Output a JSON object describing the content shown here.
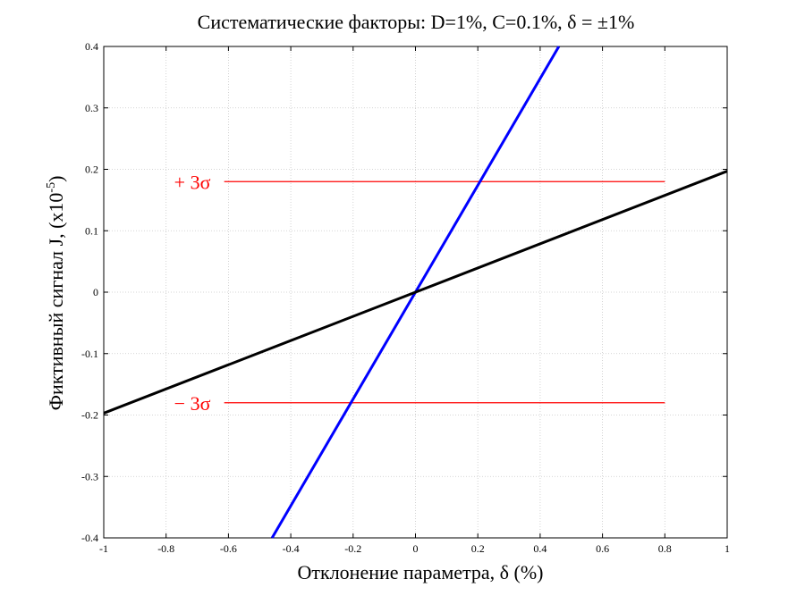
{
  "chart_data": {
    "type": "line",
    "title": "Систематические факторы:    D=1%, C=0.1%, δ = ±1%",
    "xlabel": "Отклонение параметра,  δ (%)",
    "ylabel": "Фиктивный сигнал J, (x10",
    "ylabel_exp": "-5",
    "ylabel_close": ")",
    "xlim": [
      -1,
      1
    ],
    "ylim": [
      -0.4,
      0.4
    ],
    "x_ticks": [
      -1,
      -0.8,
      -0.6,
      -0.4,
      -0.2,
      0,
      0.2,
      0.4,
      0.6,
      0.8,
      1
    ],
    "x_tick_labels": [
      "-1",
      "-0.8",
      "-0.6",
      "-0.4",
      "-0.2",
      "0",
      "0.2",
      "0.4",
      "0.6",
      "0.8",
      "1"
    ],
    "y_ticks": [
      -0.4,
      -0.3,
      -0.2,
      -0.1,
      0,
      0.1,
      0.2,
      0.3,
      0.4
    ],
    "y_tick_labels": [
      "-0.4",
      "-0.3",
      "-0.2",
      "-0.1",
      "0",
      "0.1",
      "0.2",
      "0.3",
      "0.4"
    ],
    "grid": true,
    "series": [
      {
        "color": "#0000ff",
        "x": [
          -0.46,
          0.46
        ],
        "y": [
          -0.4,
          0.4
        ]
      },
      {
        "color": "#000000",
        "x": [
          -1,
          1
        ],
        "y": [
          -0.197,
          0.197
        ]
      }
    ],
    "reference_lines": [
      {
        "label": "+ 3σ",
        "y": 0.18,
        "x": [
          -0.78,
          0.8
        ],
        "color": "#ff0000"
      },
      {
        "label": "− 3σ",
        "y": -0.18,
        "x": [
          -0.78,
          0.8
        ],
        "color": "#ff0000"
      }
    ]
  }
}
